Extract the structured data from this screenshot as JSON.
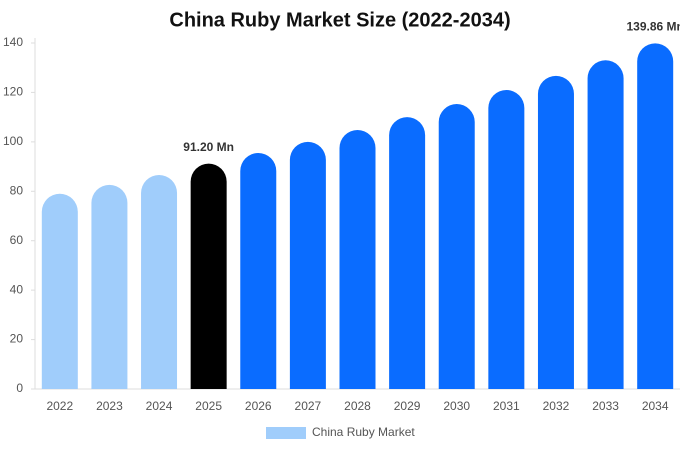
{
  "chart_data": {
    "type": "bar",
    "title": "China Ruby Market Size (2022-2034)",
    "categories": [
      "2022",
      "2023",
      "2024",
      "2025",
      "2026",
      "2027",
      "2028",
      "2029",
      "2030",
      "2031",
      "2032",
      "2033",
      "2034"
    ],
    "series": [
      {
        "name": "China Ruby Market",
        "color": "#a0cdfb",
        "colors": [
          "#a0cdfb",
          "#a0cdfb",
          "#a0cdfb",
          "#000000",
          "#0a6cff",
          "#0a6cff",
          "#0a6cff",
          "#0a6cff",
          "#0a6cff",
          "#0a6cff",
          "#0a6cff",
          "#0a6cff",
          "#0a6cff"
        ],
        "values": [
          79,
          82.6,
          86.6,
          91.2,
          95.5,
          100,
          104.8,
          110,
          115.3,
          121,
          126.7,
          133,
          139.86
        ],
        "value_labels": [
          null,
          null,
          null,
          "91.20 Mn",
          null,
          null,
          null,
          null,
          null,
          null,
          null,
          null,
          "139.86 Mn"
        ]
      }
    ],
    "ylim": [
      0,
      140
    ],
    "yticks": [
      0,
      20,
      40,
      60,
      80,
      100,
      120,
      140
    ],
    "grid": false
  }
}
